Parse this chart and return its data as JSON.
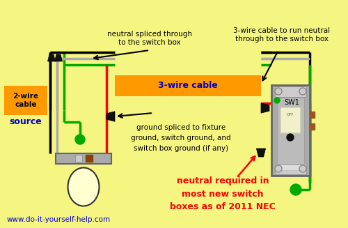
{
  "bg_color": "#f5f582",
  "wire_colors": {
    "black": "#000000",
    "gray": "#aaaaaa",
    "red": "#ff0000",
    "green": "#00aa00",
    "green2": "#008800"
  },
  "orange_cable_color": "#ff9900",
  "orange_cable_label": "3-wire cable",
  "orange_cable_label_color": "#0000cc",
  "two_wire_label": "2-wire\ncable",
  "two_wire_bg": "#ff9900",
  "source_label": "source",
  "source_color": "#0000cc",
  "annotation1": "neutral spliced through\nto the switch box",
  "annotation2": "3-wire cable to run neutral\nthrough to the switch box",
  "annotation3": "ground spliced to fixture\nground, switch ground, and\nswitch box ground (if any)",
  "annotation4": "neutral required in\nmost new switch\nboxes as of 2011 NEC",
  "annotation4_color": "#ff0000",
  "website": "www.do-it-yourself-help.com",
  "website_color": "#0000cc",
  "sw1_label": "SW1",
  "off_label": "OFF"
}
